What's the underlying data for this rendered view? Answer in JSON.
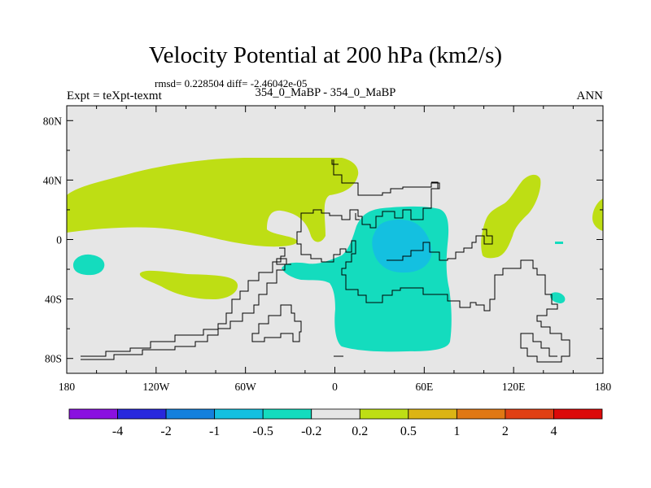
{
  "chart_data": {
    "type": "heatmap",
    "title": "Velocity Potential at 200 hPa (km2/s)",
    "stats_line": "rmsd= 0.228504 diff= -2.46042e-05",
    "subtitle": "354_0_MaBP - 354_0_MaBP",
    "left_label": "Expt = teXpt-texmt",
    "right_label": "ANN",
    "xlim": [
      -180,
      180
    ],
    "ylim": [
      -90,
      90
    ],
    "x_ticks": [
      {
        "value": -180,
        "label": "180"
      },
      {
        "value": -120,
        "label": "120W"
      },
      {
        "value": -60,
        "label": "60W"
      },
      {
        "value": 0,
        "label": "0"
      },
      {
        "value": 60,
        "label": "60E"
      },
      {
        "value": 120,
        "label": "120E"
      },
      {
        "value": 180,
        "label": "180"
      }
    ],
    "y_ticks": [
      {
        "value": 80,
        "label": "80N"
      },
      {
        "value": 40,
        "label": "40N"
      },
      {
        "value": 0,
        "label": "0"
      },
      {
        "value": -40,
        "label": "40S"
      },
      {
        "value": -80,
        "label": "80S"
      }
    ],
    "background_color": "#e6e6e6",
    "colorbar": {
      "colors": [
        "#8a10e0",
        "#2828dd",
        "#1480dd",
        "#14c0e0",
        "#14dcbe",
        "#e6e6e6",
        "#bede14",
        "#dcb414",
        "#e07814",
        "#e04014",
        "#dc0a0a"
      ],
      "labels": [
        "-4",
        "-2",
        "-1",
        "-0.5",
        "-0.2",
        "0.2",
        "0.5",
        "1",
        "2",
        "4"
      ]
    },
    "regions": [
      {
        "level": "0.2 to 0.5",
        "color": "#bede14",
        "location": "North Pacific / North America band",
        "lon_range": [
          -180,
          0
        ],
        "lat_range": [
          20,
          55
        ]
      },
      {
        "level": "0.2 to 0.5",
        "color": "#bede14",
        "location": "South Pacific",
        "lon_range": [
          -130,
          -60
        ],
        "lat_range": [
          -40,
          -20
        ]
      },
      {
        "level": "0.2 to 0.5",
        "color": "#bede14",
        "location": "Western Pacific / East Asia",
        "lon_range": [
          100,
          130
        ],
        "lat_range": [
          -10,
          45
        ]
      },
      {
        "level": "0.2 to 0.5",
        "color": "#bede14",
        "location": "Dateline edge",
        "lon_range": [
          172,
          180
        ],
        "lat_range": [
          10,
          30
        ]
      },
      {
        "level": "-0.5 to -0.2",
        "color": "#14dcbe",
        "location": "Africa / Indian Ocean",
        "lon_range": [
          0,
          80
        ],
        "lat_range": [
          -75,
          22
        ]
      },
      {
        "level": "-0.5 to -0.2",
        "color": "#14dcbe",
        "location": "South Atlantic tongue",
        "lon_range": [
          -50,
          0
        ],
        "lat_range": [
          -30,
          -10
        ]
      },
      {
        "level": "-0.5 to -0.2",
        "color": "#14dcbe",
        "location": "Central Pacific",
        "lon_range": [
          -176,
          -155
        ],
        "lat_range": [
          -22,
          -8
        ]
      },
      {
        "level": "-1 to -0.5",
        "color": "#14c0e0",
        "location": "Central Africa / Indian Ocean core",
        "lon_range": [
          25,
          70
        ],
        "lat_range": [
          -22,
          13
        ]
      }
    ]
  }
}
